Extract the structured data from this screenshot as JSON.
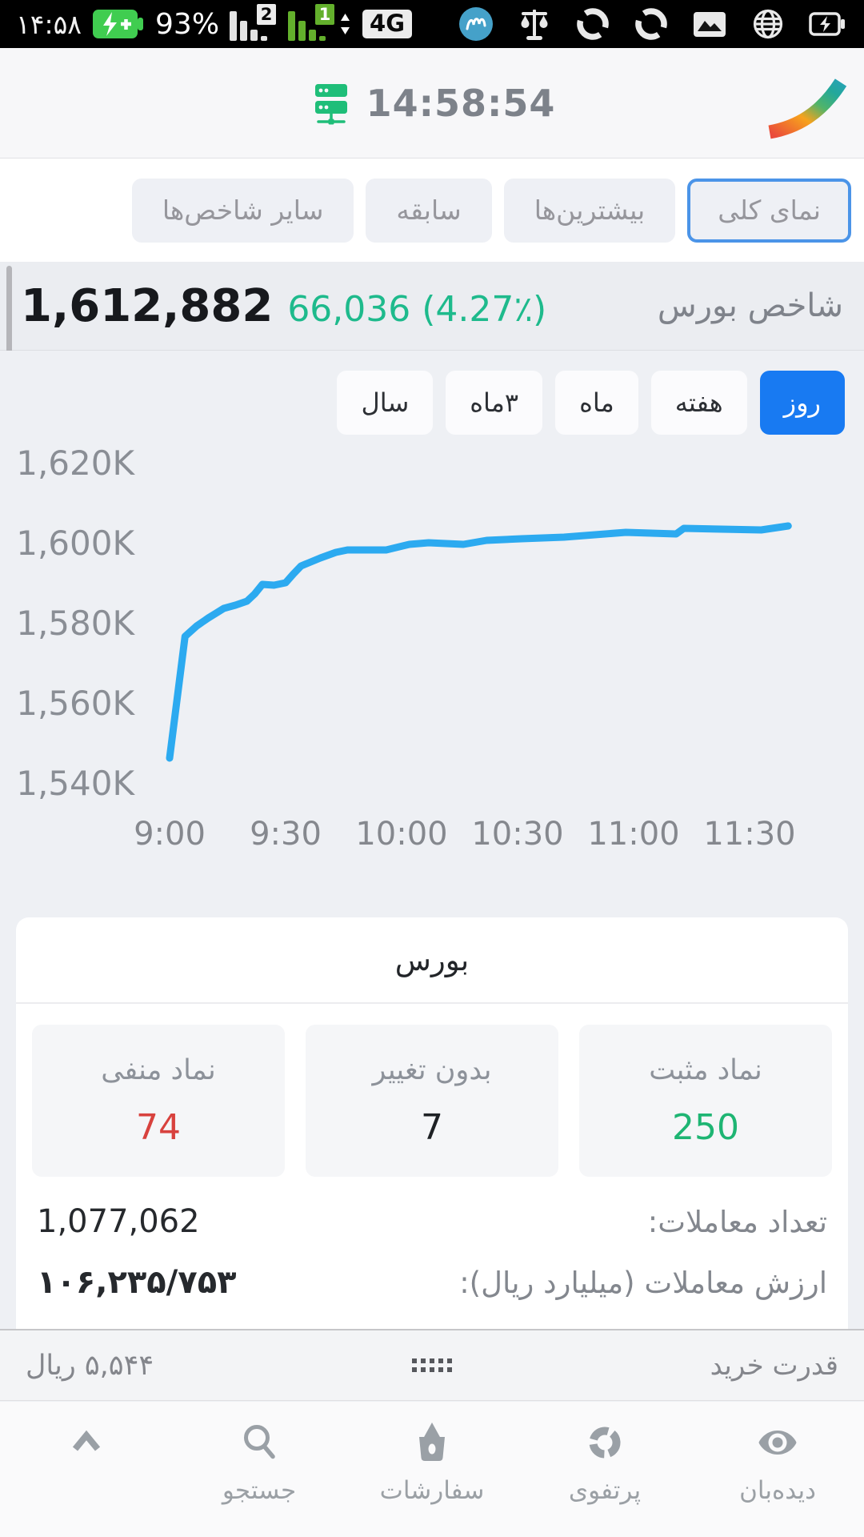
{
  "status_bar": {
    "time": "۱۴:۵۸",
    "battery_percent": "93%",
    "sim1_badge": "2",
    "sim2_badge": "1",
    "network": "4G"
  },
  "header": {
    "server_time": "14:58:54"
  },
  "tabs": {
    "items": [
      {
        "label": "نمای کلی",
        "selected": true
      },
      {
        "label": "بیشترین‌ها",
        "selected": false
      },
      {
        "label": "سابقه",
        "selected": false
      },
      {
        "label": "سایر شاخص‌ها",
        "selected": false
      }
    ]
  },
  "index_summary": {
    "name": "شاخص بورس",
    "value": "1,612,882",
    "change": "66,036 (4.27٪)"
  },
  "range_buttons": {
    "items": [
      {
        "label": "روز",
        "selected": true
      },
      {
        "label": "هفته",
        "selected": false
      },
      {
        "label": "ماه",
        "selected": false
      },
      {
        "label": "۳ماه",
        "selected": false
      },
      {
        "label": "سال",
        "selected": false
      }
    ]
  },
  "chart_data": {
    "type": "line",
    "title": "",
    "x_unit": "minutes_after_09:00",
    "x": [
      0,
      4,
      7,
      10,
      14,
      17,
      20,
      22,
      24,
      27,
      30,
      32,
      34,
      39,
      43,
      46,
      56,
      62,
      67,
      76,
      82,
      91,
      102,
      118,
      131,
      133,
      153,
      160
    ],
    "values_thousands": [
      1546.2,
      1576.6,
      1579.2,
      1581.2,
      1583.6,
      1584.4,
      1585.4,
      1587.2,
      1589.6,
      1589.4,
      1590.0,
      1592.2,
      1594.2,
      1596.2,
      1597.6,
      1598.2,
      1598.2,
      1599.6,
      1600.0,
      1599.6,
      1600.6,
      1601.0,
      1601.4,
      1602.6,
      1602.2,
      1603.6,
      1603.2,
      1604.2
    ],
    "x_ticks": [
      {
        "m": 0,
        "label": "9:00"
      },
      {
        "m": 30,
        "label": "9:30"
      },
      {
        "m": 60,
        "label": "10:00"
      },
      {
        "m": 90,
        "label": "10:30"
      },
      {
        "m": 120,
        "label": "11:00"
      },
      {
        "m": 150,
        "label": "11:30"
      }
    ],
    "y_ticks": [
      {
        "v": 1620,
        "label": "1,620K"
      },
      {
        "v": 1600,
        "label": "1,600K"
      },
      {
        "v": 1580,
        "label": "1,580K"
      },
      {
        "v": 1560,
        "label": "1,560K"
      },
      {
        "v": 1540,
        "label": "1,540K"
      }
    ],
    "ylim_thousands": [
      1530,
      1630
    ],
    "grid": false,
    "legend": "none",
    "line_color": "#2caaf0"
  },
  "market_card": {
    "title": "بورس",
    "stats": [
      {
        "label": "نماد مثبت",
        "value": "250"
      },
      {
        "label": "بدون تغییر",
        "value": "7"
      },
      {
        "label": "نماد منفی",
        "value": "74"
      }
    ],
    "rows": [
      {
        "label": "تعداد معاملات:",
        "value": "1,077,062"
      },
      {
        "label": "ارزش معاملات (میلیارد ریال):",
        "value": "۱۰۶,۲۳۵/۷۵۳"
      }
    ]
  },
  "buying_power": {
    "label": "قدرت خرید",
    "value": "۵,۵۴۴ ریال"
  },
  "bottom_nav": {
    "items": [
      {
        "label": "دیده‌بان"
      },
      {
        "label": "پرتفوی"
      },
      {
        "label": "سفارشات"
      },
      {
        "label": "جستجو"
      },
      {
        "label": ""
      }
    ]
  },
  "colors": {
    "accent_blue": "#187af2",
    "selected_tab_border": "#4b94e8",
    "positive_green": "#1eb573",
    "change_green": "#1eba8c",
    "negative_red": "#d8423e",
    "chart_line": "#2caaf0",
    "brand_green": "#1fbe79"
  }
}
